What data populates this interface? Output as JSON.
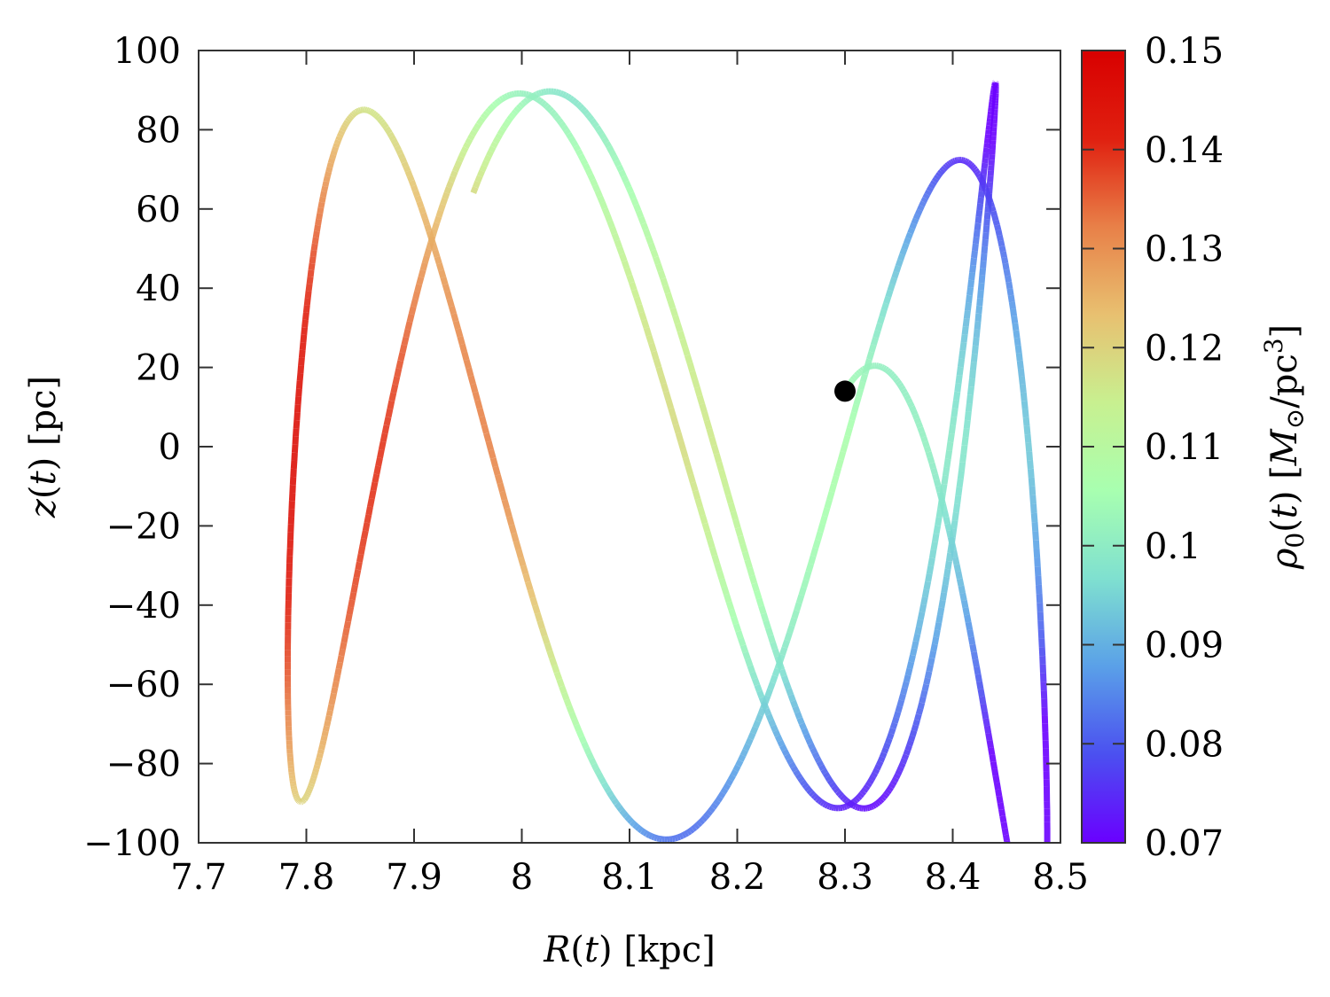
{
  "chart_data": {
    "type": "scatter",
    "subtype": "colored-trajectory",
    "title": "",
    "xlabel": "R(t) [kpc]",
    "ylabel": "z(t) [pc]",
    "colorbar_label": "ρ0(t) [M⊙/pc³]",
    "xlim": [
      7.7,
      8.5
    ],
    "ylim": [
      -100,
      100
    ],
    "clim": [
      0.07,
      0.15
    ],
    "xticks": [
      7.7,
      7.8,
      7.9,
      8.0,
      8.1,
      8.2,
      8.3,
      8.4,
      8.5
    ],
    "xtick_labels": [
      "7.7",
      "7.8",
      "7.9",
      "8",
      "8.1",
      "8.2",
      "8.3",
      "8.4",
      "8.5"
    ],
    "yticks": [
      100,
      80,
      60,
      40,
      20,
      0,
      -20,
      -40,
      -60,
      -80,
      -100
    ],
    "ytick_labels": [
      "100",
      "80",
      "60",
      "40",
      "20",
      "0",
      "−20",
      "−40",
      "−60",
      "−80",
      "−100"
    ],
    "cticks": [
      0.15,
      0.14,
      0.13,
      0.12,
      0.11,
      0.1,
      0.09,
      0.08,
      0.07
    ],
    "ctick_labels": [
      "0.15",
      "0.14",
      "0.13",
      "0.12",
      "0.11",
      "0.1",
      "0.09",
      "0.08",
      "0.07"
    ],
    "colormap": "rainbow",
    "colormap_stops": [
      "#6a00ff",
      "#4b50f0",
      "#5aa0e8",
      "#7fe0d0",
      "#a8ffb0",
      "#c8f090",
      "#e8c070",
      "#e88048",
      "#e02010",
      "#d80000"
    ],
    "grid": false,
    "legend": "none",
    "orbit": {
      "R_center": 8.11,
      "R_amplitude": 0.33,
      "z_amplitude": 92,
      "n_R_half_periods": 3,
      "freq_ratio_z_over_R": 3.35,
      "start": {
        "R": 7.955,
        "z": 66
      },
      "end": {
        "R": 8.3,
        "z": 14
      }
    },
    "current_position_marker": {
      "R": 8.3,
      "z": 14,
      "color": "#000000"
    },
    "density_model": "rho0 increases toward smaller R and |z|; approx 0.146 at (7.79, 0), 0.075 at (8.44, ±92)"
  }
}
